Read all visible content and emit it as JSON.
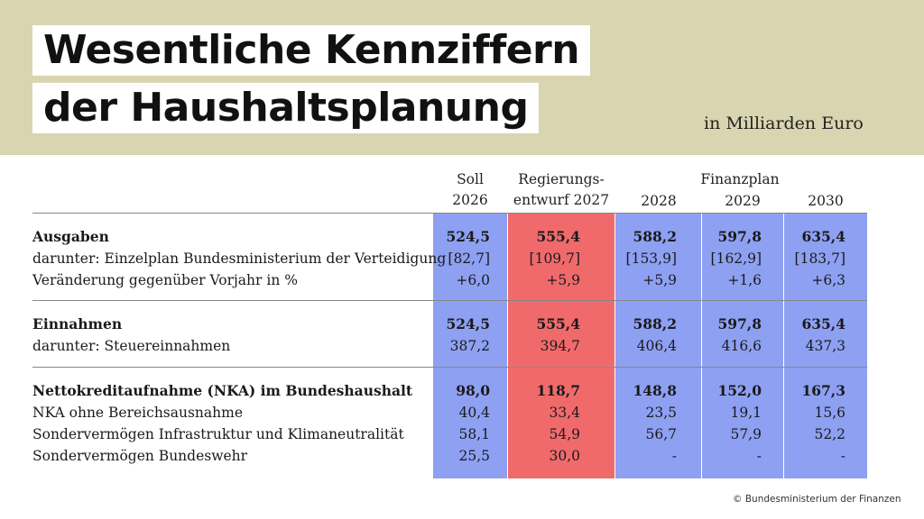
{
  "title": {
    "line1": "Wesentliche Kennziffern",
    "line2": "der Haushaltsplanung"
  },
  "unit_note": "in Milliarden Euro",
  "colors": {
    "banner": "#d9d5b0",
    "column_blue": "#8ea0f2",
    "column_red": "#f06a6c"
  },
  "header": {
    "soll_line1": "Soll",
    "soll_line2": "2026",
    "entwurf_line1": "Regierungs-",
    "entwurf_line2": "entwurf 2027",
    "finanzplan": "Finanzplan",
    "y2028": "2028",
    "y2029": "2029",
    "y2030": "2030"
  },
  "rows": [
    {
      "label": "Ausgaben",
      "values": [
        "524,5",
        "555,4",
        "588,2",
        "597,8",
        "635,4"
      ]
    },
    {
      "label": "darunter: Einzelplan Bundesministerium der Verteidigung",
      "values": [
        "[82,7]",
        "[109,7]",
        "[153,9]",
        "[162,9]",
        "[183,7]"
      ]
    },
    {
      "label": "Veränderung gegenüber Vorjahr in %",
      "values": [
        "+6,0",
        "+5,9",
        "+5,9",
        "+1,6",
        "+6,3"
      ]
    },
    {
      "label": "Einnahmen",
      "values": [
        "524,5",
        "555,4",
        "588,2",
        "597,8",
        "635,4"
      ]
    },
    {
      "label": "darunter: Steuereinnahmen",
      "values": [
        "387,2",
        "394,7",
        "406,4",
        "416,6",
        "437,3"
      ]
    },
    {
      "label": "Nettokreditaufnahme (NKA) im Bundeshaushalt",
      "values": [
        "98,0",
        "118,7",
        "148,8",
        "152,0",
        "167,3"
      ]
    },
    {
      "label": "NKA ohne Bereichsausnahme",
      "values": [
        "40,4",
        "33,4",
        "23,5",
        "19,1",
        "15,6"
      ]
    },
    {
      "label": "Sondervermögen Infrastruktur und Klimaneutralität",
      "values": [
        "58,1",
        "54,9",
        "56,7",
        "57,9",
        "52,2"
      ]
    },
    {
      "label": "Sondervermögen Bundeswehr",
      "values": [
        "25,5",
        "30,0",
        "-",
        "-",
        "-"
      ]
    }
  ],
  "copyright": "© Bundesministerium der Finanzen"
}
